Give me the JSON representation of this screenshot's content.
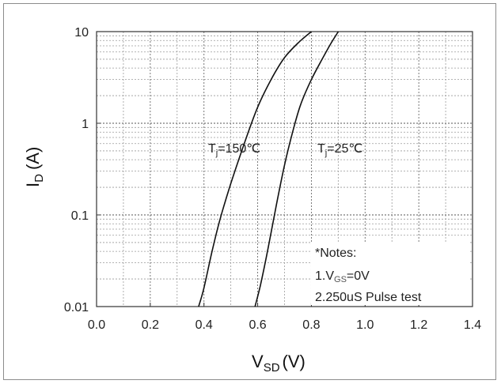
{
  "chart_data": {
    "type": "line",
    "title": "",
    "xlabel": {
      "main": "V",
      "sub": "SD",
      "unit": "(V)"
    },
    "ylabel": {
      "main": "I",
      "sub": "D",
      "unit": "(A)"
    },
    "xlim": [
      0.0,
      1.4
    ],
    "ylim": [
      0.01,
      10
    ],
    "yscale": "log",
    "grid": "dotted",
    "x_ticks": [
      "0.0",
      "0.2",
      "0.4",
      "0.6",
      "0.8",
      "1.0",
      "1.2",
      "1.4"
    ],
    "y_ticks": [
      "0.01",
      "0.1",
      "1",
      "10"
    ],
    "series": [
      {
        "name": "Tj=150°C",
        "label_parts": {
          "main": "T",
          "sub": "j",
          "rest": "=150℃"
        },
        "points": [
          [
            0.38,
            0.01
          ],
          [
            0.4,
            0.016
          ],
          [
            0.43,
            0.04
          ],
          [
            0.46,
            0.09
          ],
          [
            0.5,
            0.22
          ],
          [
            0.55,
            0.6
          ],
          [
            0.6,
            1.5
          ],
          [
            0.65,
            3.0
          ],
          [
            0.7,
            5.2
          ],
          [
            0.75,
            7.5
          ],
          [
            0.8,
            10
          ]
        ]
      },
      {
        "name": "Tj=25°C",
        "label_parts": {
          "main": "T",
          "sub": "j",
          "rest": "=25℃"
        },
        "points": [
          [
            0.59,
            0.01
          ],
          [
            0.61,
            0.017
          ],
          [
            0.64,
            0.045
          ],
          [
            0.67,
            0.13
          ],
          [
            0.7,
            0.35
          ],
          [
            0.73,
            0.8
          ],
          [
            0.76,
            1.6
          ],
          [
            0.8,
            3.0
          ],
          [
            0.84,
            5.0
          ],
          [
            0.87,
            7.2
          ],
          [
            0.9,
            10
          ]
        ]
      }
    ],
    "annotations": {
      "notes_title": "*Notes:",
      "note1": {
        "prefix": "1.V",
        "sub": "GS",
        "rest": "=0V"
      },
      "note2": "2.250uS Pulse test"
    }
  }
}
